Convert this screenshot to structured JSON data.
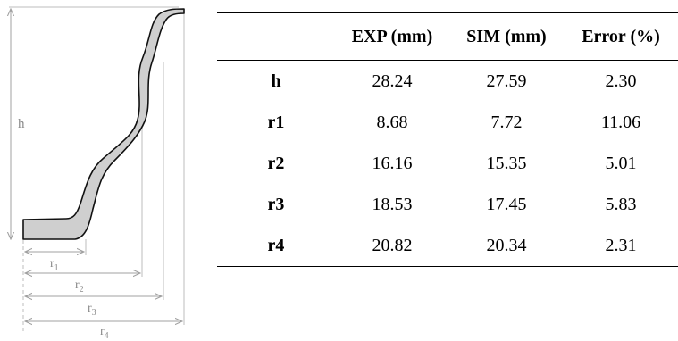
{
  "diagram": {
    "labels": {
      "h": "h",
      "r1": "r",
      "r1_sub": "1",
      "r2": "r",
      "r2_sub": "2",
      "r3": "r",
      "r3_sub": "3",
      "r4": "r",
      "r4_sub": "4"
    }
  },
  "table": {
    "headers": [
      "",
      "EXP (mm)",
      "SIM (mm)",
      "Error (%)"
    ],
    "rows": [
      {
        "label": "h",
        "exp": "28.24",
        "sim": "27.59",
        "err": "2.30"
      },
      {
        "label": "r1",
        "exp": "8.68",
        "sim": "7.72",
        "err": "11.06"
      },
      {
        "label": "r2",
        "exp": "16.16",
        "sim": "15.35",
        "err": "5.01"
      },
      {
        "label": "r3",
        "exp": "18.53",
        "sim": "17.45",
        "err": "5.83"
      },
      {
        "label": "r4",
        "exp": "20.82",
        "sim": "20.34",
        "err": "2.31"
      }
    ]
  }
}
